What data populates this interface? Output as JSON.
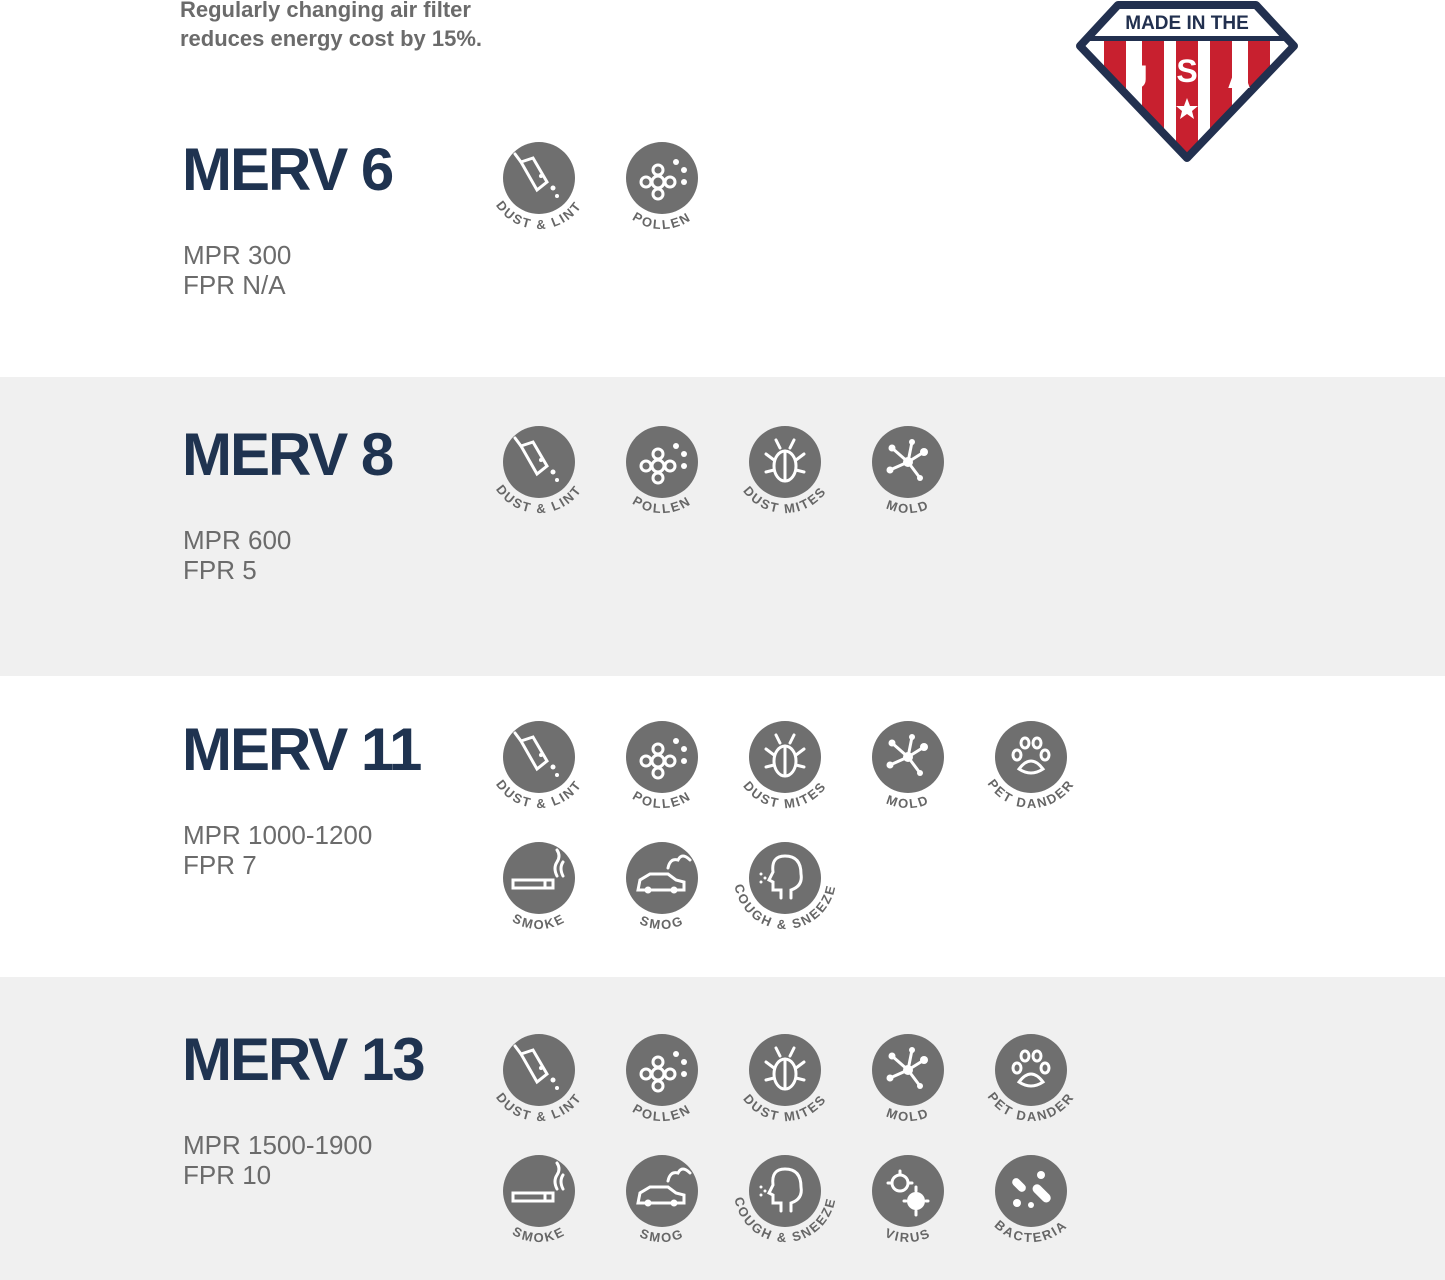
{
  "header": {
    "lines": [
      "Regularly changing air filter",
      "reduces energy cost by 15%."
    ]
  },
  "badge": {
    "top": "MADE IN THE",
    "letters": [
      "U",
      "S",
      "A"
    ]
  },
  "sections": [
    {
      "title": "MERV 6",
      "mpr": "MPR 300",
      "fpr": "FPR N/A",
      "icons": [
        "DUST & LINT",
        "POLLEN"
      ]
    },
    {
      "title": "MERV 8",
      "mpr": "MPR 600",
      "fpr": "FPR 5",
      "icons": [
        "DUST & LINT",
        "POLLEN",
        "DUST MITES",
        "MOLD"
      ]
    },
    {
      "title": "MERV 11",
      "mpr": "MPR 1000-1200",
      "fpr": "FPR 7",
      "icons": [
        "DUST & LINT",
        "POLLEN",
        "DUST MITES",
        "MOLD",
        "PET DANDER",
        "SMOKE",
        "SMOG",
        "COUGH & SNEEZE"
      ]
    },
    {
      "title": "MERV 13",
      "mpr": "MPR 1500-1900",
      "fpr": "FPR 10",
      "icons": [
        "DUST & LINT",
        "POLLEN",
        "DUST MITES",
        "MOLD",
        "PET DANDER",
        "SMOKE",
        "SMOG",
        "COUGH & SNEEZE",
        "VIRUS",
        "BACTERIA"
      ]
    }
  ]
}
